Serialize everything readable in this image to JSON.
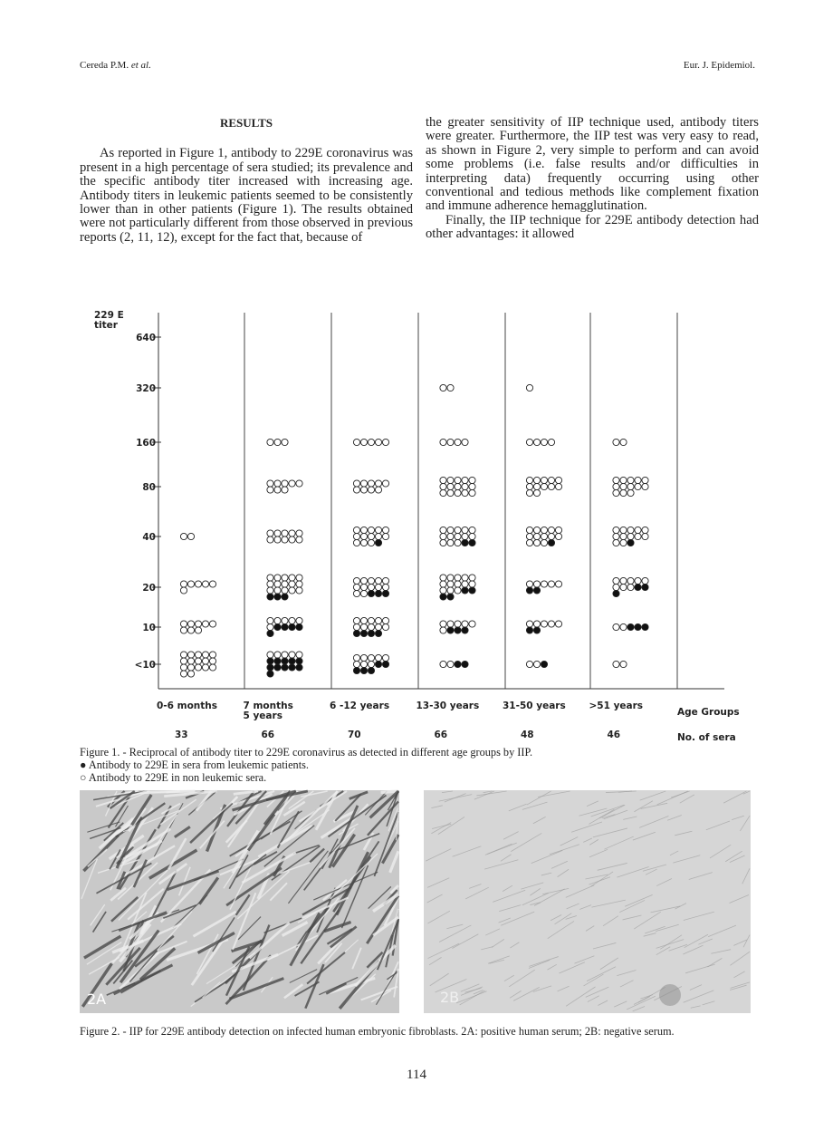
{
  "header": {
    "author": "Cereda P.M.",
    "etal": "et al.",
    "journal": "Eur. J. Epidemiol."
  },
  "results": {
    "heading": "RESULTS",
    "left_paragraph": "As reported in Figure 1, antibody to 229E coronavirus was present in a high percentage of sera studied; its prevalence and the specific antibody titer increased with increasing age. Antibody titers in leukemic patients seemed to be consistently lower than in other patients (Figure 1). The results obtained were not particularly different from those observed in previous reports (2, 11, 12), except for the fact that, because of",
    "right_paragraphs": [
      "the greater sensitivity of IIP technique used, antibody titers were greater. Furthermore, the IIP test was very easy to read, as shown in Figure 2, very simple to perform and can avoid some problems (i.e. false results and/or difficulties in interpreting data) frequently occurring using other conventional and tedious methods like complement fixation and immune adherence hemagglutination.",
      "Finally, the IIP technique for 229E antibody detection had other advantages: it allowed"
    ]
  },
  "figure1": {
    "y_label": [
      "229 E",
      "titer"
    ],
    "titers": [
      "640",
      "320",
      "160",
      "80",
      "40",
      "20",
      "10",
      "<10"
    ],
    "groups": [
      {
        "label": "0-6 months",
        "n": "33",
        "open": [
          0,
          0,
          0,
          0,
          2,
          6,
          8,
          17
        ],
        "filled": [
          0,
          0,
          0,
          0,
          0,
          0,
          0,
          0
        ]
      },
      {
        "label": "7 months 5 years",
        "n": "66",
        "open": [
          0,
          0,
          3,
          8,
          10,
          15,
          6,
          5
        ],
        "filled": [
          0,
          0,
          0,
          0,
          0,
          3,
          5,
          11
        ]
      },
      {
        "label": "6 -12 years",
        "n": "70",
        "open": [
          0,
          0,
          5,
          9,
          13,
          12,
          10,
          8
        ],
        "filled": [
          0,
          0,
          0,
          0,
          1,
          3,
          4,
          5
        ]
      },
      {
        "label": "13-30 years",
        "n": "66",
        "open": [
          0,
          2,
          4,
          15,
          13,
          13,
          6,
          2
        ],
        "filled": [
          0,
          0,
          0,
          0,
          2,
          4,
          3,
          2
        ]
      },
      {
        "label": "31-50 years",
        "n": "48",
        "open": [
          0,
          1,
          4,
          12,
          13,
          5,
          5,
          2
        ],
        "filled": [
          0,
          0,
          0,
          0,
          1,
          2,
          2,
          1
        ]
      },
      {
        "label": ">51 years",
        "n": "46",
        "open": [
          0,
          0,
          2,
          13,
          12,
          8,
          2,
          2
        ],
        "filled": [
          0,
          0,
          0,
          0,
          1,
          3,
          3,
          0
        ]
      }
    ],
    "age_groups_label": "Age Groups",
    "n_label": "No. of sera",
    "caption": [
      "Figure 1. - Reciprocal of antibody titer to 229E coronavirus as detected in different age groups by IIP.",
      "● Antibody to 229E in sera from leukemic patients.",
      "○ Antibody to 229E in non leukemic sera."
    ]
  },
  "figure2": {
    "panel_a": "2A",
    "panel_b": "2B",
    "caption": "Figure 2. - IIP for 229E antibody detection on infected human embryonic fibroblasts. 2A: positive human serum; 2B: negative serum."
  },
  "page_number": "114"
}
